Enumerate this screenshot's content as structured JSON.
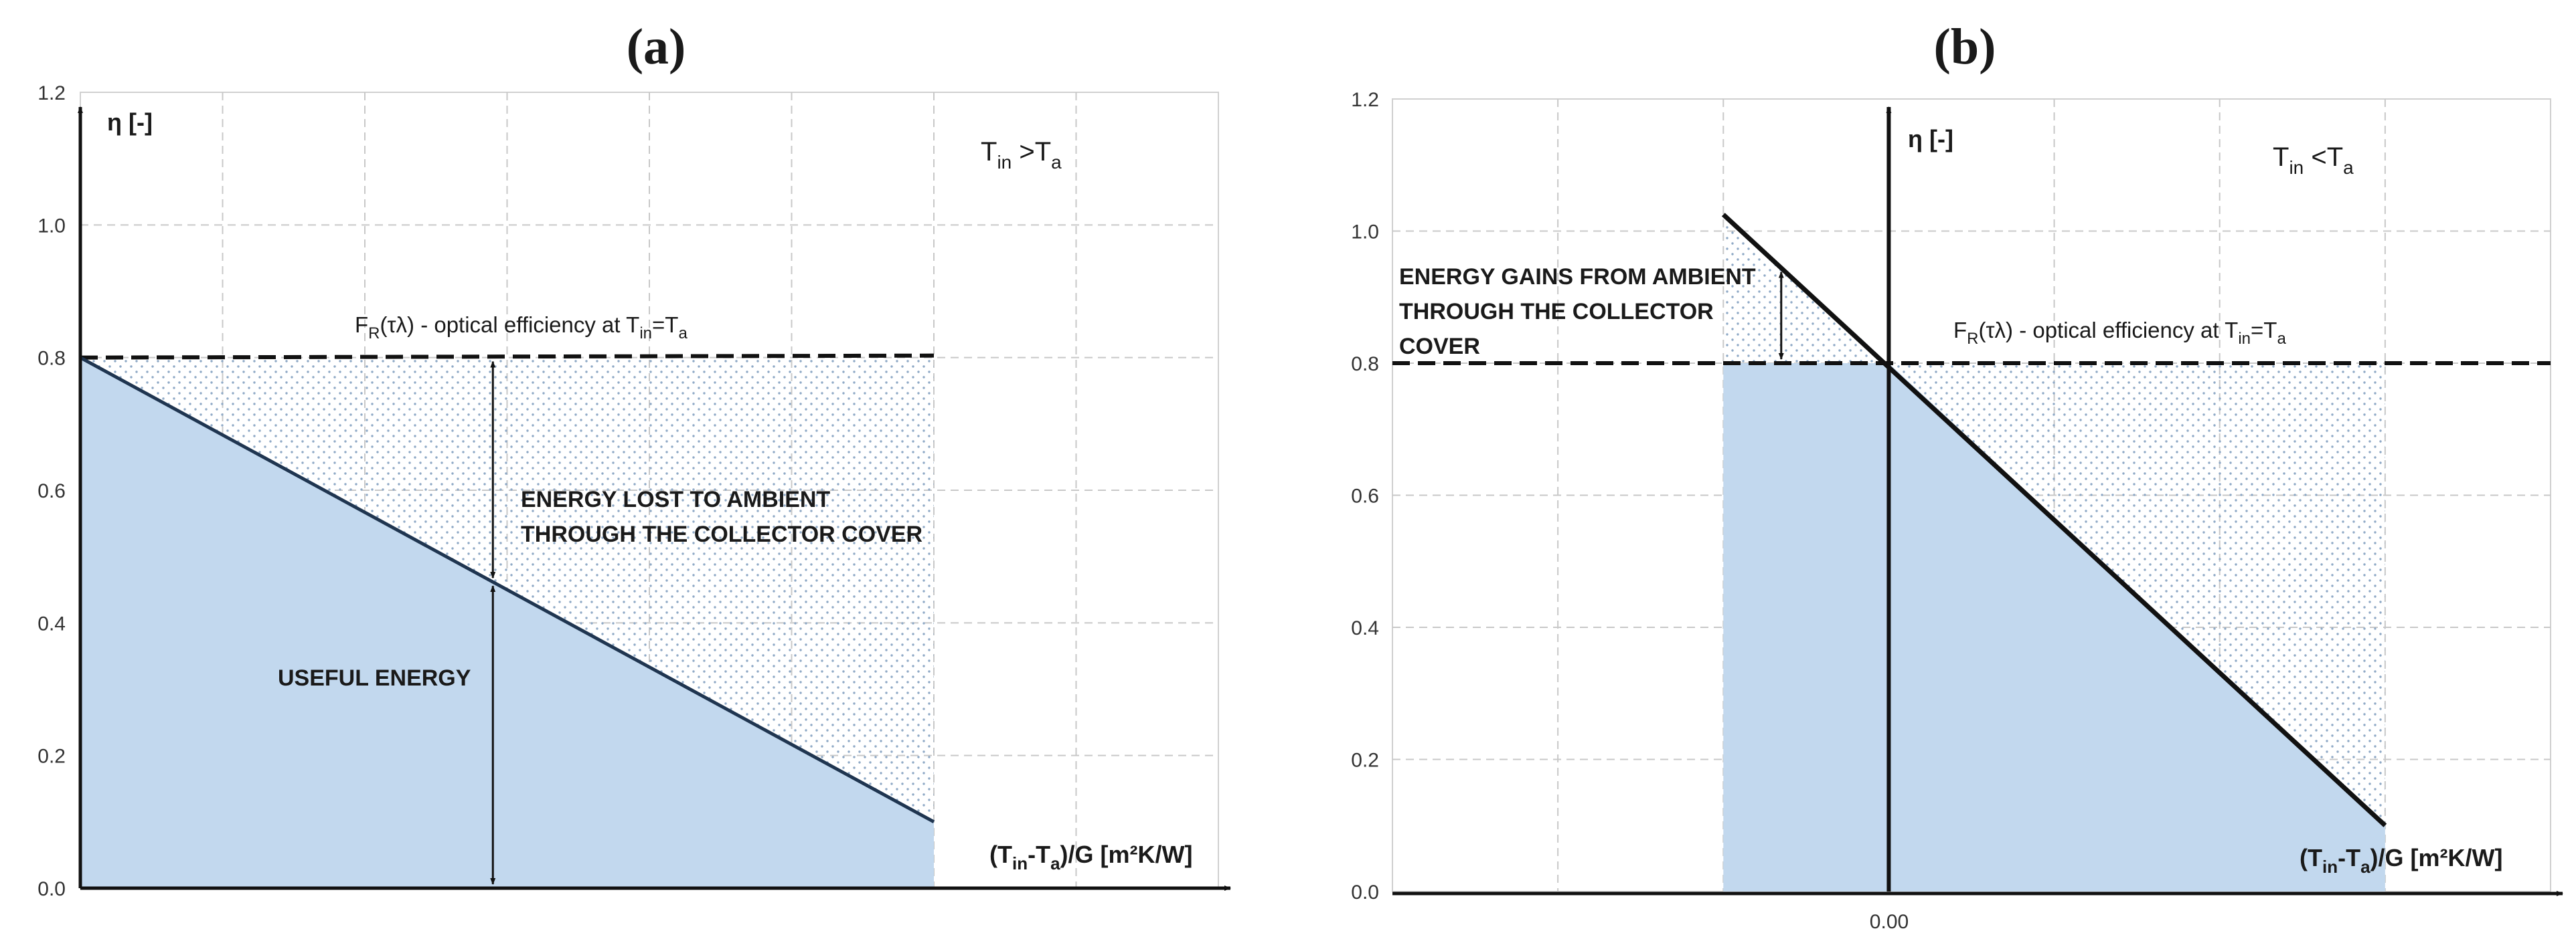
{
  "chart_data": [
    {
      "id": "a",
      "type": "area",
      "title": "(a)",
      "ylabel": "η [-]",
      "xlabel_html": "(T<sub>in</sub>-T<sub>a</sub>)/G [m²K/W]",
      "condition": "T_in > T_a",
      "ylim": [
        0,
        1.2
      ],
      "xlim": [
        0,
        8
      ],
      "yticks": [
        "0.0",
        "0.2",
        "0.4",
        "0.6",
        "0.8",
        "1.0",
        "1.2"
      ],
      "optical_efficiency": 0.8,
      "optical_label": "F_R(τλ) - optical efficiency at T_in=T_a",
      "efficiency_line": {
        "x": [
          0,
          6
        ],
        "y": [
          0.8,
          0.1
        ]
      },
      "arrow_x": 2.9,
      "annotations": {
        "lost_line1": "ENERGY LOST TO AMBIENT",
        "lost_line2": "THROUGH THE COLLECTOR COVER",
        "useful": "USEFUL ENERGY"
      },
      "grid": true
    },
    {
      "id": "b",
      "type": "area",
      "title": "(b)",
      "ylabel": "η [-]",
      "condition": "T_in < T_a",
      "ylim": [
        0,
        1.2
      ],
      "xlim": [
        -3,
        4
      ],
      "xticks": [
        "0.00"
      ],
      "yticks": [
        "0.0",
        "0.2",
        "0.4",
        "0.6",
        "0.8",
        "1.0",
        "1.2"
      ],
      "optical_efficiency": 0.8,
      "optical_label": "F_R(τλ) - optical efficiency at T_in=T_a",
      "efficiency_line": {
        "x": [
          -1,
          3
        ],
        "y": [
          1.025,
          0.1
        ]
      },
      "arrow_x": -0.65,
      "annotations": {
        "gains_line1": "ENERGY GAINS FROM AMBIENT",
        "gains_line2": "THROUGH THE COLLECTOR",
        "gains_line3": "COVER"
      },
      "grid": true
    }
  ],
  "colors": {
    "fill": "#c2d8ee",
    "dots": "#8fa9c6",
    "line_a": "#1f3550",
    "line_b": "#111111"
  }
}
